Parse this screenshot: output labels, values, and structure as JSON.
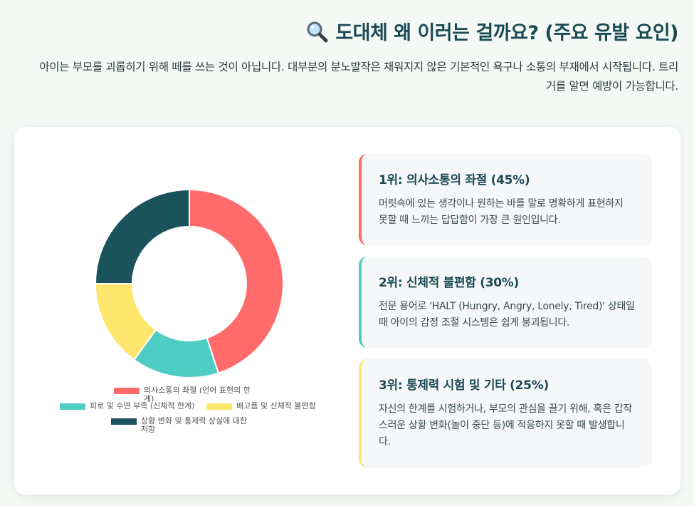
{
  "header": {
    "title": "도대체 왜 이러는 걸까요? (주요 유발 요인)",
    "icon": "magnifying-glass-icon",
    "lead": "아이는 부모를 괴롭히기 위해 떼를 쓰는 것이 아닙니다. 대부분의 분노발작은 채워지지 않은 기본적인 욕구나 소통의 부재에서 시작됩니다. 트리거를 알면 예방이 가능합니다."
  },
  "chart_data": {
    "type": "pie",
    "donut": true,
    "categories": [
      "의사소통의 좌절 (언어 표현의 한계)",
      "피로 및 수면 부족 (신체적 한계)",
      "배고픔 및 신체적 불편함",
      "상황 변화 및 통제력 상실에 대한 저항"
    ],
    "values": [
      45,
      15,
      15,
      25
    ],
    "colors": [
      "#ff6b6b",
      "#4ecdc4",
      "#ffe66d",
      "#1a535c"
    ],
    "legend_position": "bottom"
  },
  "reasons": [
    {
      "title": "1위: 의사소통의 좌절 (45%)",
      "body": "머릿속에 있는 생각이나 원하는 바를 말로 명확하게 표현하지 못할 때 느끼는 답답함이 가장 큰 원인입니다.",
      "color": "#ff6b6b"
    },
    {
      "title": "2위: 신체적 불편함 (30%)",
      "body": "전문 용어로 'HALT (Hungry, Angry, Lonely, Tired)' 상태일 때 아이의 감정 조절 시스템은 쉽게 붕괴됩니다.",
      "color": "#4ecdc4"
    },
    {
      "title": "3위: 통제력 시험 및 기타 (25%)",
      "body": "자신의 한계를 시험하거나, 부모의 관심을 끌기 위해, 혹은 갑작스러운 상황 변화(놀이 중단 등)에 적응하지 못할 때 발생합니다.",
      "color": "#ffe66d"
    }
  ]
}
